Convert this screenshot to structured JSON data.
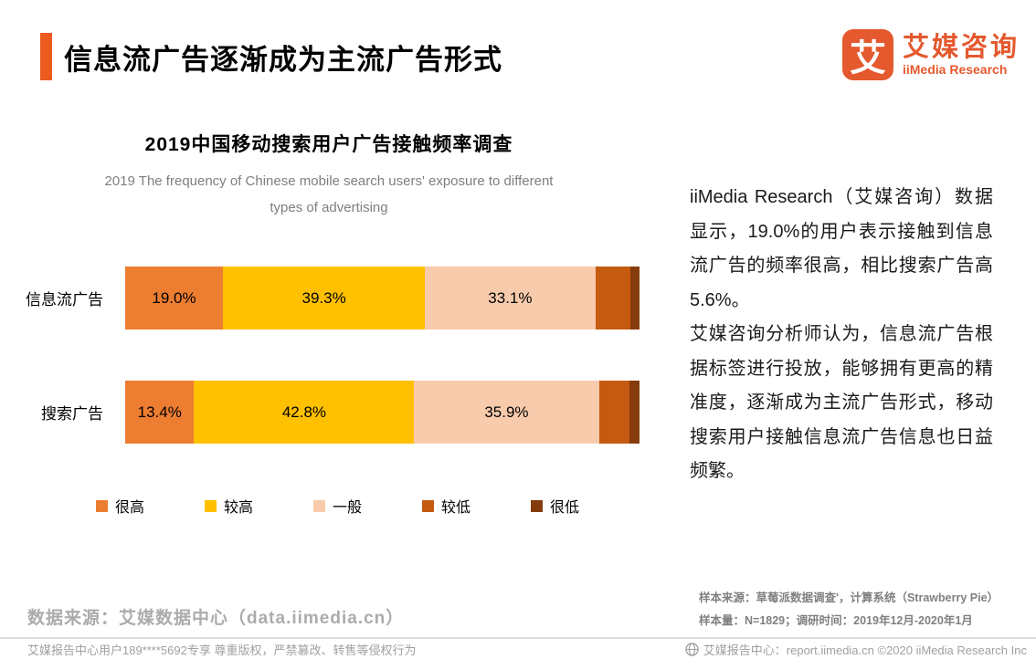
{
  "header": {
    "title": "信息流广告逐渐成为主流广告形式",
    "logo": {
      "icon_char": "艾",
      "name_cn": "艾媒咨询",
      "name_en": "iiMedia Research"
    }
  },
  "colors": {
    "accent_orange": "#EC5B1E",
    "logo_orange": "#E4592E",
    "segment_colors": [
      "#ED7D31",
      "#FFC000",
      "#F8CBAD",
      "#C55A11",
      "#843C0C"
    ]
  },
  "chart_data": {
    "type": "bar",
    "variant": "horizontal-stacked",
    "title": "2019中国移动搜索用户广告接触频率调查",
    "subtitle": "2019 The frequency of Chinese mobile search users'  exposure to different types of advertising",
    "categories": [
      "信息流广告",
      "搜索广告"
    ],
    "legend": [
      "很高",
      "较高",
      "一般",
      "较低",
      "很低"
    ],
    "legend_position": "bottom",
    "xlim": [
      0,
      100
    ],
    "grid": false,
    "series": [
      {
        "name": "很高",
        "color": "#ED7D31",
        "values": [
          19.0,
          13.4
        ],
        "labels": [
          "19.0%",
          "13.4%"
        ]
      },
      {
        "name": "较高",
        "color": "#FFC000",
        "values": [
          39.3,
          42.8
        ],
        "labels": [
          "39.3%",
          "42.8%"
        ]
      },
      {
        "name": "一般",
        "color": "#F8CBAD",
        "values": [
          33.1,
          35.9
        ],
        "labels": [
          "33.1%",
          "35.9%"
        ]
      },
      {
        "name": "较低",
        "color": "#C55A11",
        "values": [
          6.8,
          6.0
        ],
        "labels": [
          "",
          ""
        ]
      },
      {
        "name": "很低",
        "color": "#843C0C",
        "values": [
          1.8,
          1.9
        ],
        "labels": [
          "",
          ""
        ]
      }
    ],
    "unlabeled_segment_values_estimated": true
  },
  "analysis": {
    "paragraph1": "iiMedia Research（艾媒咨询）数据显示，19.0%的用户表示接触到信息流广告的频率很高，相比搜索广告高5.6%。",
    "paragraph2": "艾媒咨询分析师认为，信息流广告根据标签进行投放，能够拥有更高的精准度，逐渐成为主流广告形式，移动搜索用户接触信息流广告信息也日益频繁。"
  },
  "source": {
    "data_source": "数据来源：艾媒数据中心（data.iimedia.cn）",
    "sample_source": "样本来源：草莓派数据调查'，计算系统（Strawberry Pie）",
    "sample_size": "样本量：N=1829；调研时间：2019年12月-2020年1月"
  },
  "footer": {
    "left": "艾媒报告中心用户189****5692专享 尊重版权，严禁篡改、转售等侵权行为",
    "right": "艾媒报告中心：report.iimedia.cn ©2020 iiMedia Research Inc"
  }
}
